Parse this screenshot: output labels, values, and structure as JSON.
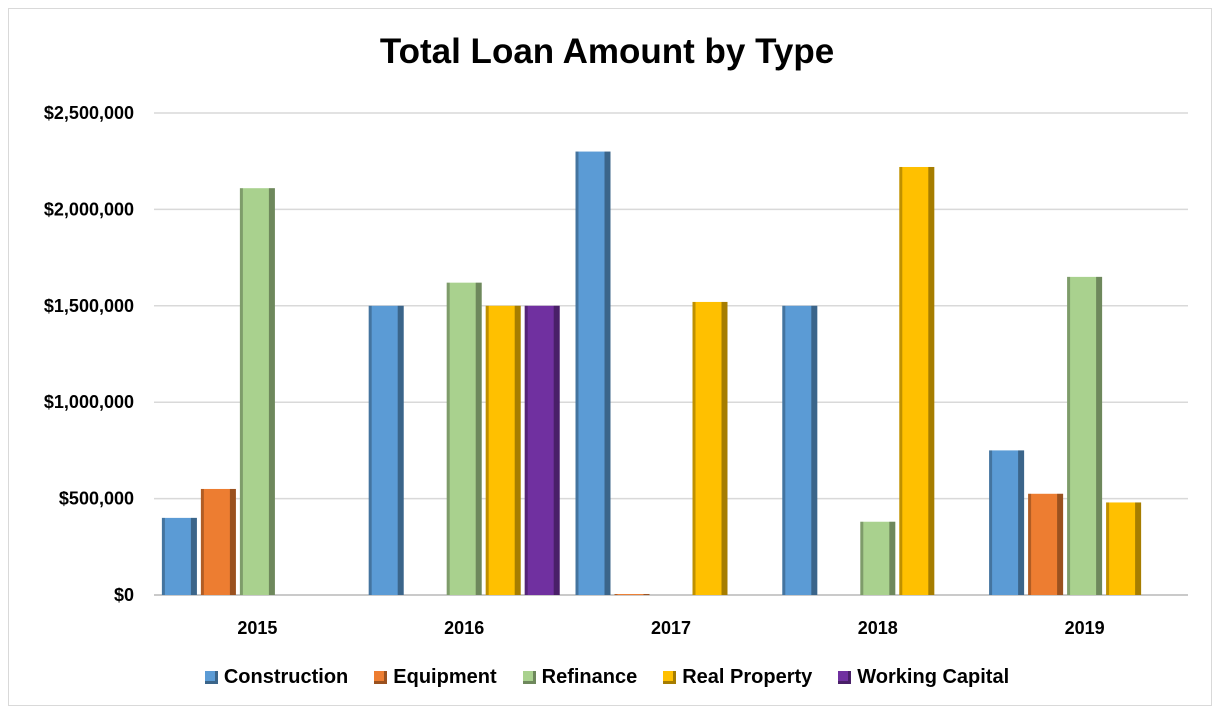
{
  "chart_data": {
    "type": "bar",
    "title": "Total Loan Amount by Type",
    "xlabel": "",
    "ylabel": "",
    "categories": [
      "2015",
      "2016",
      "2017",
      "2018",
      "2019"
    ],
    "ylim": [
      0,
      2500000
    ],
    "yticks": [
      {
        "value": 0,
        "label": "$0"
      },
      {
        "value": 500000,
        "label": "$500,000"
      },
      {
        "value": 1000000,
        "label": "$1,000,000"
      },
      {
        "value": 1500000,
        "label": "$1,500,000"
      },
      {
        "value": 2000000,
        "label": "$2,000,000"
      },
      {
        "value": 2500000,
        "label": "$2,500,000"
      }
    ],
    "grid": true,
    "legend_position": "bottom",
    "series": [
      {
        "name": "Construction",
        "color": "#5b9bd5",
        "values": [
          400000,
          1500000,
          2300000,
          1500000,
          750000
        ]
      },
      {
        "name": "Equipment",
        "color": "#ed7d31",
        "values": [
          550000,
          0,
          5000,
          0,
          525000
        ]
      },
      {
        "name": "Refinance",
        "color": "#a9d18e",
        "values": [
          2110000,
          1620000,
          0,
          380000,
          1650000
        ]
      },
      {
        "name": "Real Property",
        "color": "#ffc000",
        "values": [
          0,
          1500000,
          1520000,
          2220000,
          480000
        ]
      },
      {
        "name": "Working Capital",
        "color": "#7030a0",
        "values": [
          0,
          1500000,
          0,
          0,
          0
        ]
      }
    ]
  }
}
